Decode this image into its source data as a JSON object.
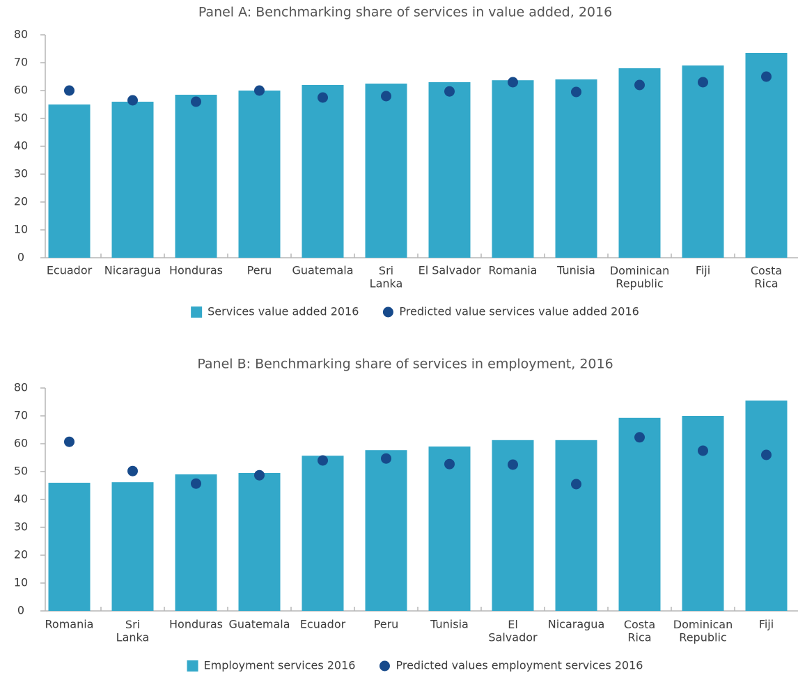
{
  "chart_data": [
    {
      "type": "bar",
      "title": "Panel A: Benchmarking share of services in value added, 2016",
      "categories": [
        "Ecuador",
        "Nicaragua",
        "Honduras",
        "Peru",
        "Guatemala",
        "Sri\nLanka",
        "El Salvador",
        "Romania",
        "Tunisia",
        "Dominican\nRepublic",
        "Fiji",
        "Costa\nRica"
      ],
      "series": [
        {
          "name": "Services value added 2016",
          "type": "bar",
          "color": "#33a8c9",
          "values": [
            55,
            56,
            58.5,
            60,
            62,
            62.5,
            63,
            63.7,
            64,
            68,
            69,
            73.5
          ]
        },
        {
          "name": "Predicted value services value added 2016",
          "type": "scatter",
          "color": "#174a8b",
          "values": [
            60,
            56.5,
            56,
            60,
            57.5,
            58,
            59.7,
            63,
            59.5,
            62,
            63,
            65
          ]
        }
      ],
      "ylim": [
        0,
        80
      ],
      "yticks": [
        0,
        10,
        20,
        30,
        40,
        50,
        60,
        70,
        80
      ],
      "grid": false,
      "legend": "bottom"
    },
    {
      "type": "bar",
      "title": "Panel B: Benchmarking share of services in employment, 2016",
      "categories": [
        "Romania",
        "Sri\nLanka",
        "Honduras",
        "Guatemala",
        "Ecuador",
        "Peru",
        "Tunisia",
        "El\nSalvador",
        "Nicaragua",
        "Costa\nRica",
        "Dominican\nRepublic",
        "Fiji"
      ],
      "series": [
        {
          "name": "Employment services 2016",
          "type": "bar",
          "color": "#33a8c9",
          "values": [
            46,
            46.2,
            49,
            49.5,
            55.7,
            57.7,
            59,
            61.3,
            61.3,
            69.3,
            70,
            75.5
          ]
        },
        {
          "name": "Predicted values employment services 2016",
          "type": "scatter",
          "color": "#174a8b",
          "values": [
            60.7,
            50.2,
            45.7,
            48.7,
            54,
            54.7,
            52.7,
            52.5,
            45.5,
            62.3,
            57.5,
            56
          ]
        }
      ],
      "ylim": [
        0,
        80
      ],
      "yticks": [
        0,
        10,
        20,
        30,
        40,
        50,
        60,
        70,
        80
      ],
      "grid": false,
      "legend": "bottom"
    }
  ]
}
